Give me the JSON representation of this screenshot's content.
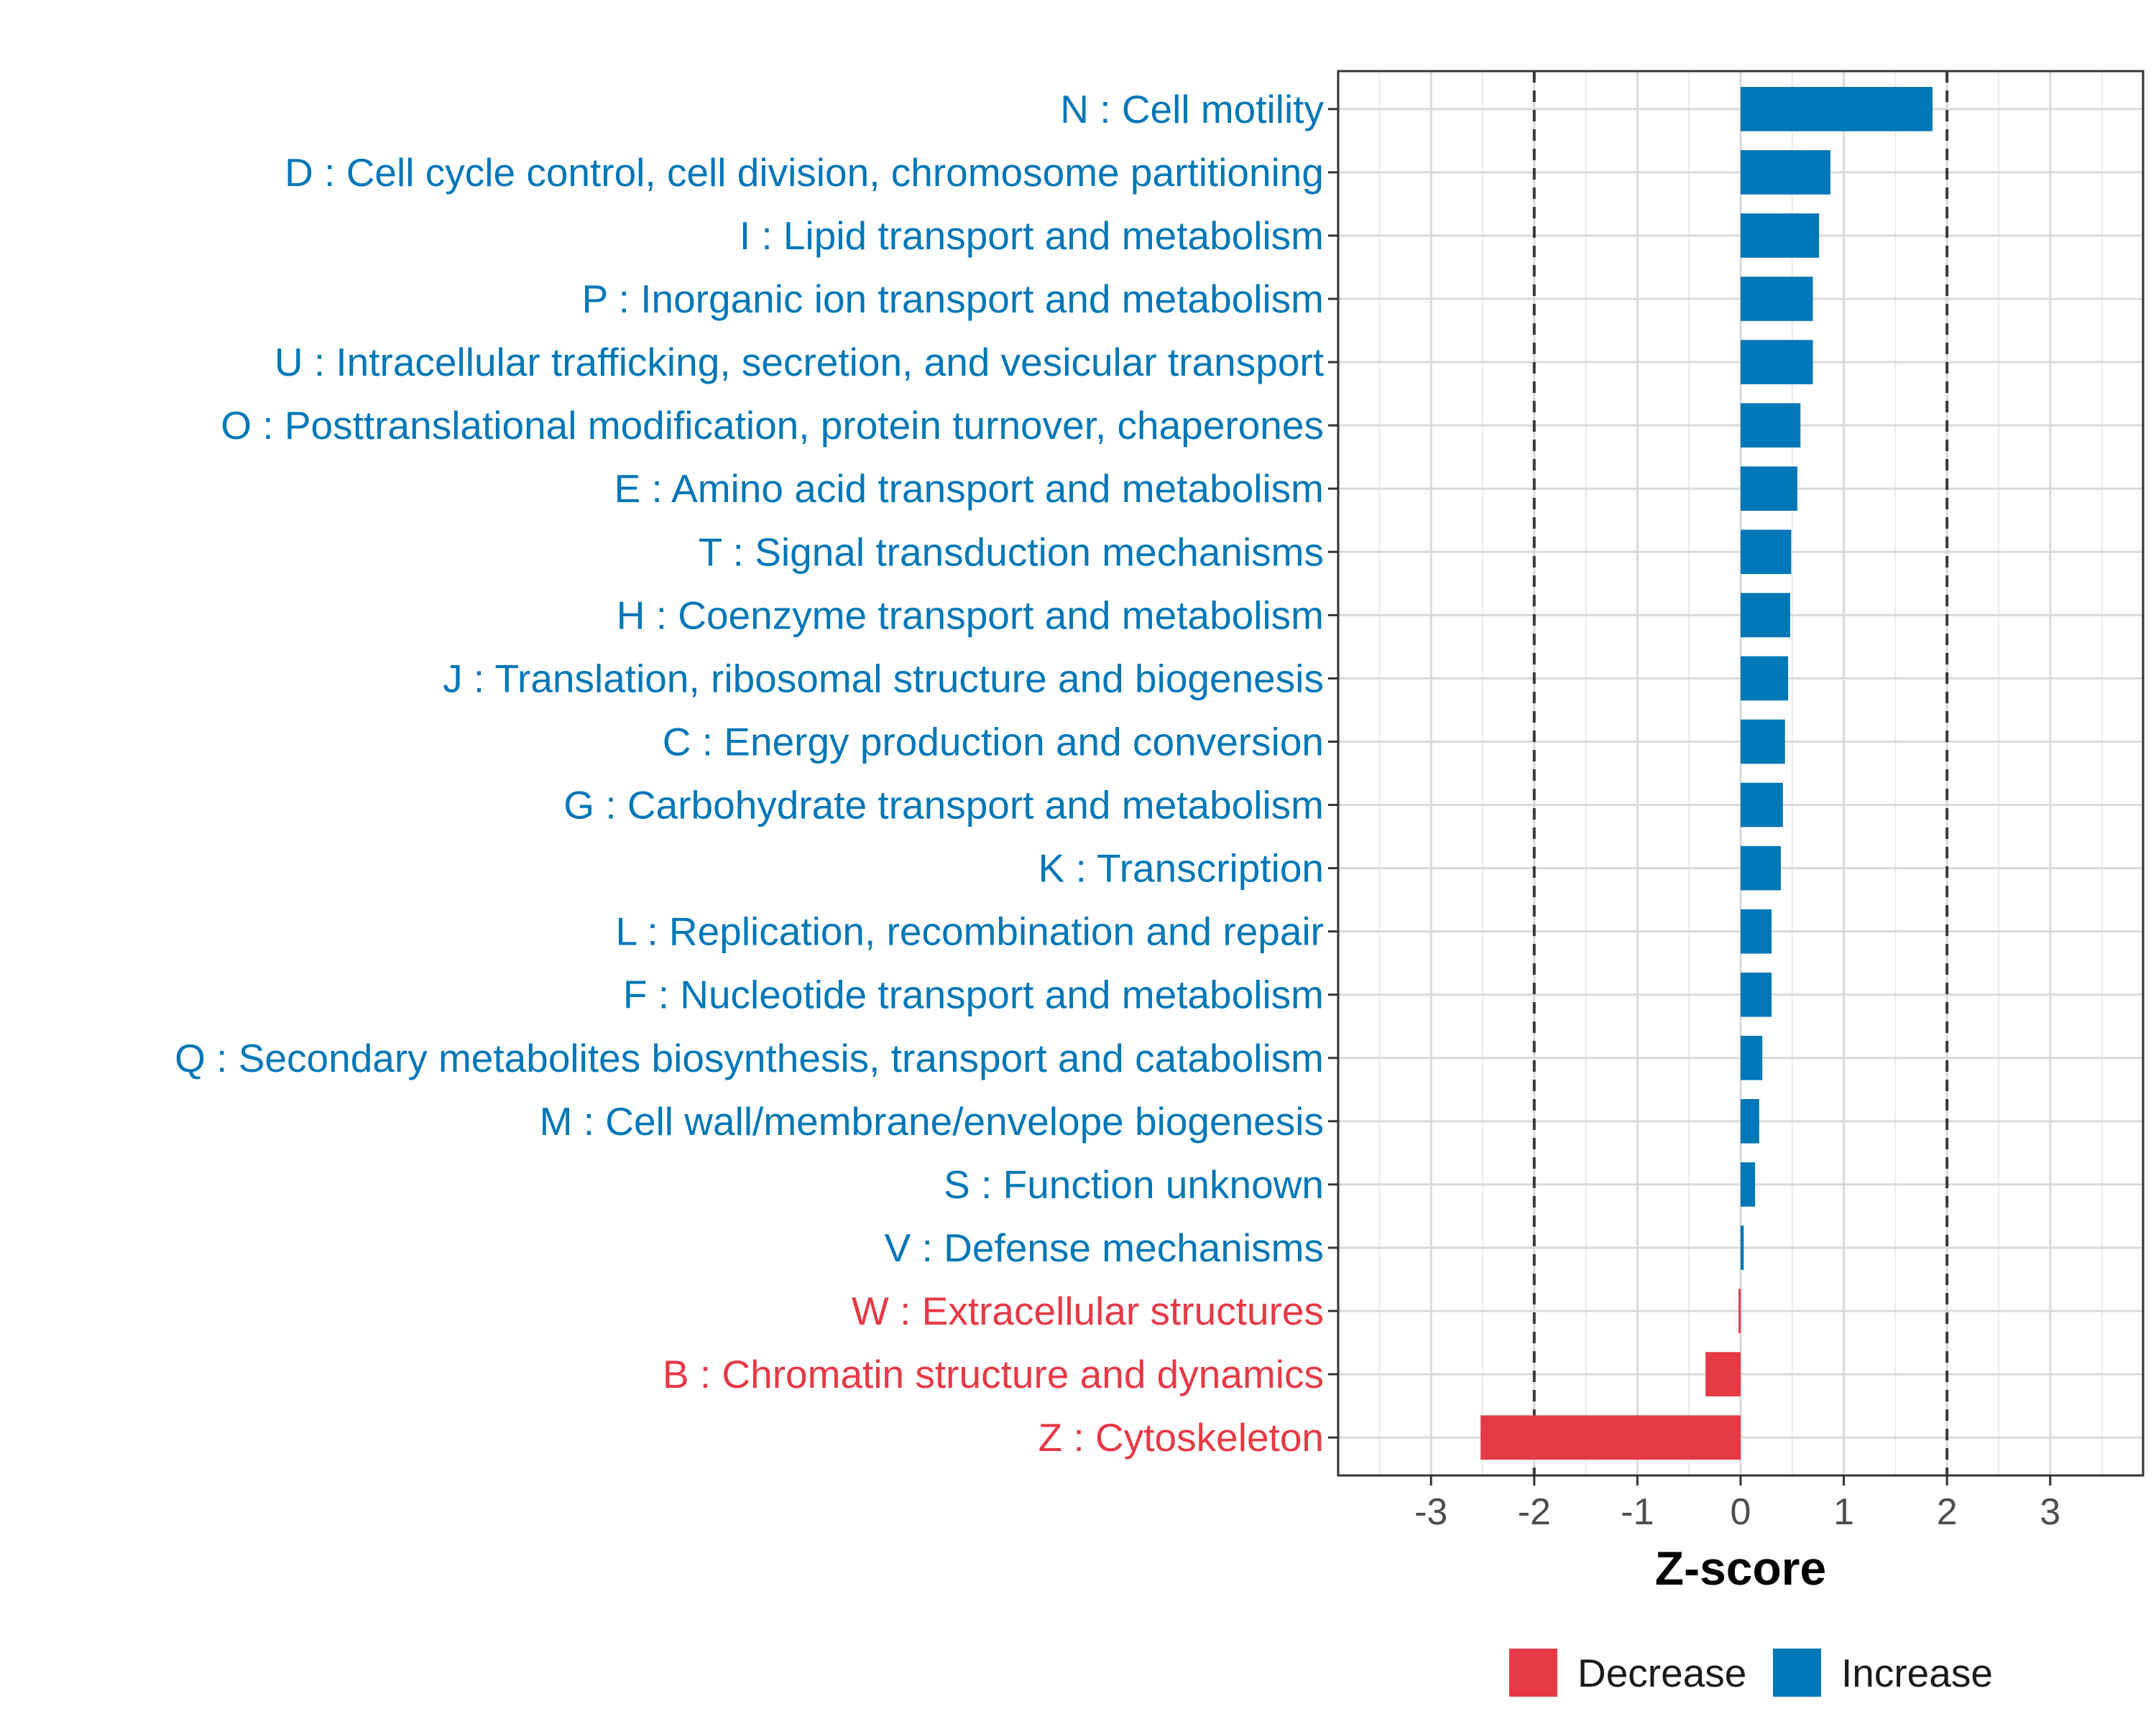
{
  "chart_data": {
    "type": "bar",
    "orientation": "horizontal",
    "xlabel": "Z-score",
    "xlim": [
      -3.9,
      3.9
    ],
    "xticks": [
      -3,
      -2,
      -1,
      0,
      1,
      2,
      3
    ],
    "xtick_labels": [
      "-3",
      "-2",
      "-1",
      "0",
      "1",
      "2",
      "3"
    ],
    "reference_lines": [
      -2,
      2
    ],
    "grid": true,
    "legend_position": "bottom",
    "colors": {
      "Decrease": "#e63946",
      "Increase": "#0077b6"
    },
    "categories": [
      "N : Cell motility",
      "D : Cell cycle control, cell division, chromosome partitioning",
      "I : Lipid transport and metabolism",
      "P : Inorganic ion transport and metabolism",
      "U : Intracellular trafficking, secretion, and vesicular transport",
      "O : Posttranslational modification, protein turnover, chaperones",
      "E : Amino acid transport and metabolism",
      "T : Signal transduction mechanisms",
      "H : Coenzyme transport and metabolism",
      "J : Translation, ribosomal structure and biogenesis",
      "C : Energy production and conversion",
      "G : Carbohydrate transport and metabolism",
      "K : Transcription",
      "L : Replication, recombination and repair",
      "F : Nucleotide transport and metabolism",
      "Q : Secondary metabolites biosynthesis, transport and catabolism",
      "M : Cell wall/membrane/envelope biogenesis",
      "S : Function unknown",
      "V : Defense mechanisms",
      "W : Extracellular structures",
      "B : Chromatin structure and dynamics",
      "Z : Cytoskeleton"
    ],
    "values": [
      1.86,
      0.87,
      0.76,
      0.7,
      0.7,
      0.58,
      0.55,
      0.49,
      0.48,
      0.46,
      0.43,
      0.41,
      0.39,
      0.3,
      0.3,
      0.21,
      0.18,
      0.14,
      0.03,
      -0.02,
      -0.34,
      -2.52
    ],
    "groups": [
      "Increase",
      "Increase",
      "Increase",
      "Increase",
      "Increase",
      "Increase",
      "Increase",
      "Increase",
      "Increase",
      "Increase",
      "Increase",
      "Increase",
      "Increase",
      "Increase",
      "Increase",
      "Increase",
      "Increase",
      "Increase",
      "Increase",
      "Decrease",
      "Decrease",
      "Decrease"
    ],
    "legend": [
      "Decrease",
      "Increase"
    ]
  }
}
